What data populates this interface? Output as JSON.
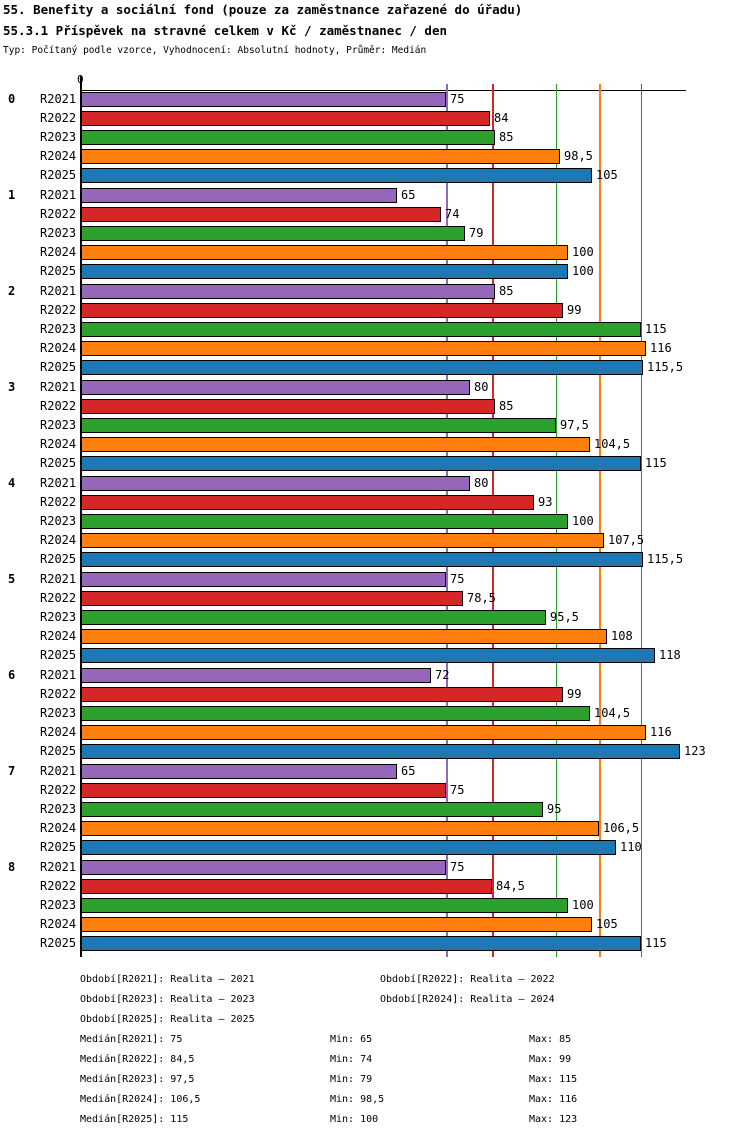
{
  "header": {
    "title": "55. Benefity a sociální fond (pouze za zaměstnance zařazené do úřadu)",
    "subtitle": "55.3.1 Příspěvek na stravné celkem v Kč / zaměstnanec / den",
    "meta": "Typ: Počítaný podle vzorce, Vyhodnocení: Absolutní hodnoty, Průměr: Medián",
    "axis_origin_label": "0"
  },
  "chart_data": {
    "type": "bar",
    "orientation": "horizontal",
    "categories": [
      "0",
      "1",
      "2",
      "3",
      "4",
      "5",
      "6",
      "7",
      "8"
    ],
    "xlim": [
      0,
      124.5
    ],
    "grid": "vertical colored lines at each series median",
    "legend_position": "bottom",
    "series": [
      {
        "name": "R2021",
        "color": "#9467bd",
        "median": 75,
        "values": [
          75,
          65,
          85,
          80,
          80,
          75,
          72,
          65,
          75
        ],
        "labels": [
          "75",
          "65",
          "85",
          "80",
          "80",
          "75",
          "72",
          "65",
          "75"
        ]
      },
      {
        "name": "R2022",
        "color": "#d62728",
        "median": 84.5,
        "values": [
          84,
          74,
          99,
          85,
          93,
          78.5,
          99,
          75,
          84.5
        ],
        "labels": [
          "84",
          "74",
          "99",
          "85",
          "93",
          "78,5",
          "99",
          "75",
          "84,5"
        ]
      },
      {
        "name": "R2023",
        "color": "#2ca02c",
        "median": 97.5,
        "values": [
          85,
          79,
          115,
          97.5,
          100,
          95.5,
          104.5,
          95,
          100
        ],
        "labels": [
          "85",
          "79",
          "115",
          "97,5",
          "100",
          "95,5",
          "104,5",
          "95",
          "100"
        ]
      },
      {
        "name": "R2024",
        "color": "#ff7f0e",
        "median": 106.5,
        "values": [
          98.5,
          100,
          116,
          104.5,
          107.5,
          108,
          116,
          106.5,
          105
        ],
        "labels": [
          "98,5",
          "100",
          "116",
          "104,5",
          "107,5",
          "108",
          "116",
          "106,5",
          "105"
        ]
      },
      {
        "name": "R2025",
        "color": "#1f77b4",
        "median": 115,
        "values": [
          105,
          100,
          115.5,
          115,
          115.5,
          118,
          123,
          110,
          115
        ],
        "labels": [
          "105",
          "100",
          "115,5",
          "115",
          "115,5",
          "118",
          "123",
          "110",
          "115"
        ]
      }
    ]
  },
  "legend": {
    "items": [
      "Období[R2021]: Realita – 2021",
      "Období[R2022]: Realita – 2022",
      "Období[R2023]: Realita – 2023",
      "Období[R2024]: Realita – 2024",
      "Období[R2025]: Realita – 2025"
    ]
  },
  "stats": {
    "rows": [
      {
        "median": "Medián[R2021]: 75",
        "min": "Min: 65",
        "max": "Max: 85"
      },
      {
        "median": "Medián[R2022]: 84,5",
        "min": "Min: 74",
        "max": "Max: 99"
      },
      {
        "median": "Medián[R2023]: 97,5",
        "min": "Min: 79",
        "max": "Max: 115"
      },
      {
        "median": "Medián[R2024]: 106,5",
        "min": "Min: 98,5",
        "max": "Max: 116"
      },
      {
        "median": "Medián[R2025]: 115",
        "min": "Min: 100",
        "max": "Max: 123"
      }
    ]
  }
}
